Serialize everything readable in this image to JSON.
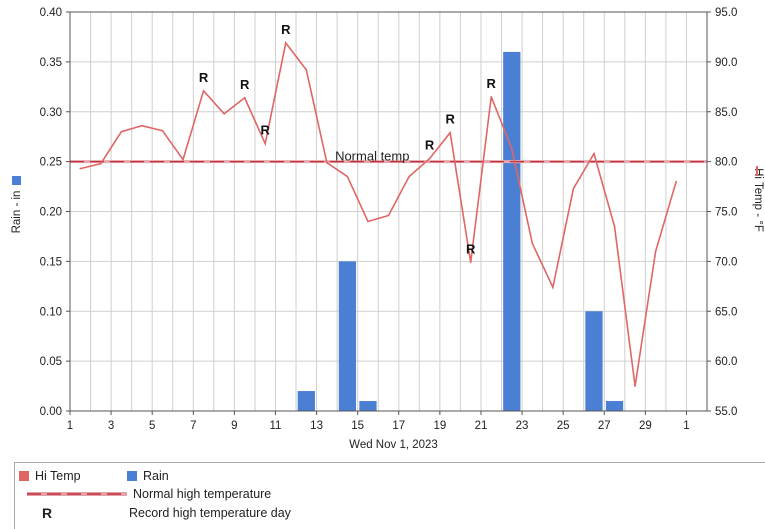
{
  "chart_data": {
    "type": "bar",
    "xlabel": "Wed Nov 1, 2023",
    "x_ticks": [
      "1",
      "3",
      "5",
      "7",
      "9",
      "11",
      "13",
      "15",
      "17",
      "19",
      "21",
      "23",
      "25",
      "27",
      "29",
      "1"
    ],
    "y_left": {
      "label": "Rain - in",
      "range": [
        0,
        0.4
      ],
      "ticks": [
        "0.00",
        "0.05",
        "0.10",
        "0.15",
        "0.20",
        "0.25",
        "0.30",
        "0.35",
        "0.40"
      ]
    },
    "y_right": {
      "label": "Hi Temp - °F",
      "range": [
        55,
        95
      ],
      "ticks": [
        "55.0",
        "60.0",
        "65.0",
        "70.0",
        "75.0",
        "80.0",
        "85.0",
        "90.0",
        "95.0"
      ]
    },
    "normal_label": "Normal temp",
    "normal_value": 80,
    "rain": [
      {
        "day": 12.5,
        "value": 0.02
      },
      {
        "day": 14.5,
        "value": 0.15
      },
      {
        "day": 15.5,
        "value": 0.01
      },
      {
        "day": 22.5,
        "value": 0.36
      },
      {
        "day": 26.5,
        "value": 0.1
      },
      {
        "day": 27.5,
        "value": 0.01
      }
    ],
    "temp": [
      [
        1.5,
        79.3
      ],
      [
        2.5,
        79.8
      ],
      [
        3.5,
        83.0
      ],
      [
        4.5,
        83.6
      ],
      [
        5.5,
        83.1
      ],
      [
        6.5,
        80.2
      ],
      [
        7.5,
        87.1
      ],
      [
        8.5,
        84.8
      ],
      [
        9.5,
        86.4
      ],
      [
        10.5,
        81.8
      ],
      [
        11.5,
        91.9
      ],
      [
        12.5,
        89.2
      ],
      [
        13.5,
        79.9
      ],
      [
        14.5,
        78.5
      ],
      [
        15.5,
        74.0
      ],
      [
        16.5,
        74.6
      ],
      [
        17.5,
        78.5
      ],
      [
        18.5,
        80.3
      ],
      [
        19.5,
        82.9
      ],
      [
        20.5,
        69.9
      ],
      [
        21.5,
        86.5
      ],
      [
        22.5,
        81.3
      ],
      [
        23.5,
        71.8
      ],
      [
        24.5,
        67.4
      ],
      [
        25.5,
        77.3
      ],
      [
        26.5,
        80.8
      ],
      [
        27.5,
        73.5
      ],
      [
        28.5,
        57.5
      ],
      [
        29.5,
        71.0
      ],
      [
        30.5,
        78.0
      ]
    ],
    "record_days": [
      7.5,
      9.5,
      10.5,
      11.5,
      18.5,
      19.5,
      20.5,
      21.5
    ],
    "record_symbol": "R",
    "colors": {
      "temp": "#e06666",
      "rain": "#4a7fd4",
      "normal": "#c0303a"
    },
    "grid": true
  },
  "legend": {
    "hi_temp": "Hi Temp",
    "rain": "Rain",
    "normal": "Normal high temperature",
    "record_symbol": "R",
    "record": "Record high temperature day"
  }
}
